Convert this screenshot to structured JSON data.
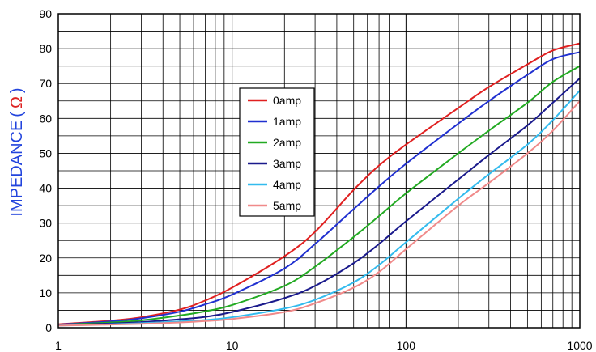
{
  "chart_data": {
    "type": "line",
    "ylabel": "IMPEDANCE",
    "ylabel_unit": "Ω",
    "ylabel_open": "(",
    "ylabel_close": ")",
    "xlabel": "",
    "title": "",
    "x_scale": "log",
    "xlim": [
      1,
      1000
    ],
    "ylim": [
      0,
      90
    ],
    "x_ticks": [
      "1",
      "10",
      "100",
      "1000"
    ],
    "y_ticks": [
      "0",
      "10",
      "20",
      "30",
      "40",
      "50",
      "60",
      "70",
      "80",
      "90"
    ],
    "grid": true,
    "legend": "inside-center-left",
    "colors": {
      "ylabel": "#2244dd",
      "ylabel_unit": "#dd2222"
    },
    "x": [
      1,
      2,
      3,
      5,
      7,
      10,
      20,
      30,
      50,
      70,
      100,
      200,
      300,
      500,
      700,
      1000
    ],
    "series": [
      {
        "name": "0amp",
        "color": "#e02020",
        "values": [
          1.0,
          2.0,
          3.0,
          5.2,
          7.8,
          11.5,
          20.5,
          27.5,
          39.5,
          46.5,
          52.5,
          63.0,
          69.0,
          75.5,
          79.5,
          81.5
        ]
      },
      {
        "name": "1amp",
        "color": "#2030d0",
        "values": [
          0.9,
          1.8,
          2.7,
          4.6,
          6.7,
          9.5,
          17.0,
          24.0,
          34.0,
          40.5,
          47.0,
          58.5,
          65.0,
          72.5,
          77.0,
          79.0
        ]
      },
      {
        "name": "2amp",
        "color": "#22aa22",
        "values": [
          0.8,
          1.5,
          2.1,
          3.5,
          4.7,
          6.5,
          12.0,
          17.5,
          26.0,
          32.0,
          38.5,
          50.0,
          56.5,
          64.5,
          70.5,
          75.0
        ]
      },
      {
        "name": "3amp",
        "color": "#1a1a8c",
        "values": [
          0.7,
          1.2,
          1.6,
          2.4,
          3.1,
          4.5,
          8.5,
          12.0,
          18.5,
          24.0,
          30.5,
          42.5,
          49.5,
          58.0,
          64.5,
          71.5
        ]
      },
      {
        "name": "4amp",
        "color": "#33bbee",
        "values": [
          0.6,
          1.0,
          1.3,
          1.8,
          2.2,
          3.0,
          5.5,
          8.0,
          13.0,
          18.0,
          24.5,
          37.0,
          44.0,
          52.5,
          59.5,
          68.0
        ]
      },
      {
        "name": "5amp",
        "color": "#f08a8a",
        "values": [
          0.6,
          0.9,
          1.1,
          1.5,
          1.9,
          2.5,
          4.5,
          7.0,
          11.5,
          16.0,
          22.5,
          35.0,
          41.5,
          50.0,
          56.5,
          65.0
        ]
      }
    ]
  }
}
